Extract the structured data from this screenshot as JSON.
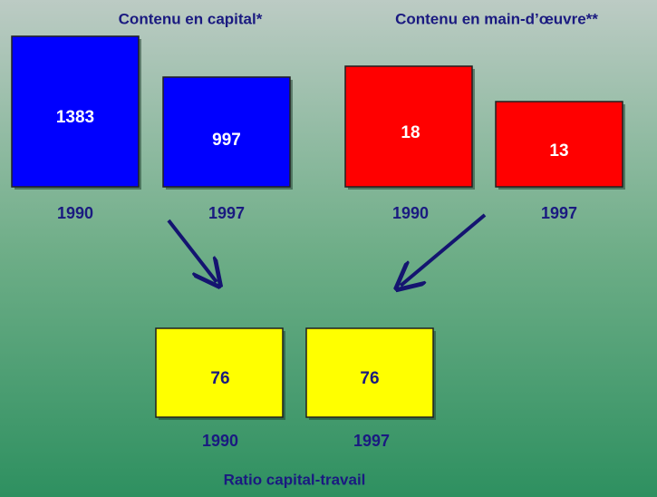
{
  "panels": [
    {
      "title": "Contenu en capital*",
      "items": [
        {
          "year": "1990",
          "value": 1383
        },
        {
          "year": "1997",
          "value": 997
        }
      ]
    },
    {
      "title": "Contenu en main-d’œuvre**",
      "items": [
        {
          "year": "1990",
          "value": 18
        },
        {
          "year": "1997",
          "value": 13
        }
      ]
    }
  ],
  "ratio": {
    "title": "Ratio capital-travail",
    "items": [
      {
        "year": "1990",
        "value": 76
      },
      {
        "year": "1997",
        "value": 76
      }
    ]
  }
}
